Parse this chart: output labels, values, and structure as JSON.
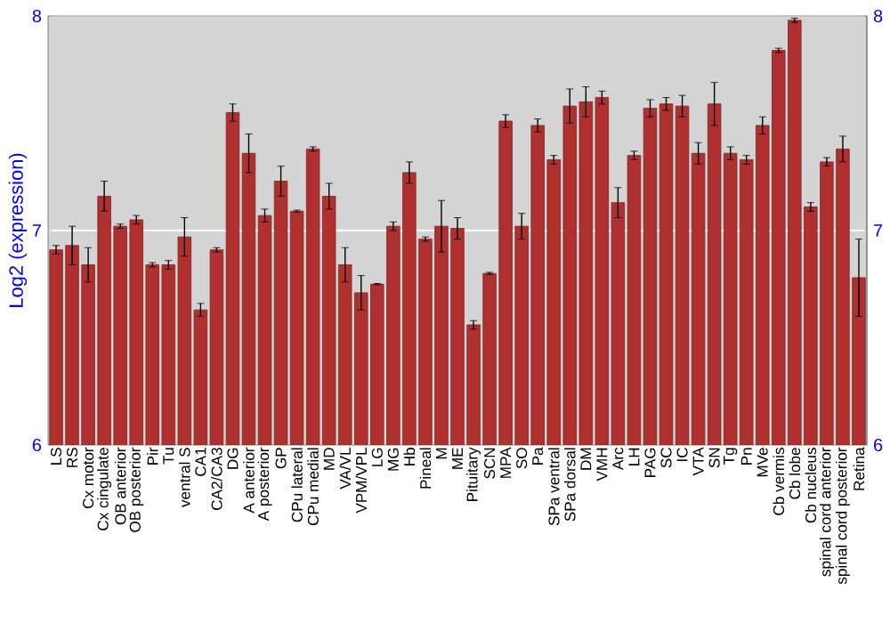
{
  "chart_data": {
    "type": "bar",
    "ylabel": "Log2 (expression)",
    "categories": [
      "LS",
      "RS",
      "Cx motor",
      "Cx cingulate",
      "OB anterior",
      "OB posterior",
      "Pir",
      "Tu",
      "ventral S",
      "CA1",
      "CA2/CA3",
      "DG",
      "A anterior",
      "A posterior",
      "GP",
      "CPu lateral",
      "CPu medial",
      "MD",
      "VA/VL",
      "VPM/VPL",
      "LG",
      "MG",
      "Hb",
      "Pineal",
      "M",
      "ME",
      "Pituitary",
      "SCN",
      "MPA",
      "SO",
      "Pa",
      "SPa ventral",
      "SPa dorsal",
      "DM",
      "VMH",
      "Arc",
      "LH",
      "PAG",
      "SC",
      "IC",
      "VTA",
      "SN",
      "Tg",
      "Pn",
      "MVe",
      "Cb vermis",
      "Cb lobe",
      "Cb nucleus",
      "spinal cord anterior",
      "spinal cord posterior",
      "Retina"
    ],
    "values": [
      6.91,
      6.93,
      6.84,
      7.16,
      7.02,
      7.05,
      6.84,
      6.84,
      6.97,
      6.63,
      6.91,
      7.55,
      7.36,
      7.07,
      7.23,
      7.09,
      7.38,
      7.16,
      6.84,
      6.71,
      6.75,
      7.02,
      7.27,
      6.96,
      7.02,
      7.01,
      6.56,
      6.8,
      7.51,
      7.02,
      7.49,
      7.33,
      7.58,
      7.6,
      7.62,
      7.13,
      7.35,
      7.57,
      7.59,
      7.58,
      7.36,
      7.59,
      7.36,
      7.33,
      7.49,
      7.84,
      7.98,
      7.11,
      7.32,
      7.38,
      6.78
    ],
    "errors": [
      0.02,
      0.09,
      0.08,
      0.07,
      0.01,
      0.02,
      0.01,
      0.02,
      0.09,
      0.03,
      0.01,
      0.04,
      0.09,
      0.03,
      0.07,
      0.005,
      0.01,
      0.06,
      0.08,
      0.08,
      0.003,
      0.02,
      0.05,
      0.01,
      0.12,
      0.05,
      0.02,
      0.005,
      0.03,
      0.06,
      0.03,
      0.02,
      0.08,
      0.07,
      0.03,
      0.07,
      0.02,
      0.04,
      0.03,
      0.05,
      0.05,
      0.1,
      0.03,
      0.02,
      0.04,
      0.01,
      0.01,
      0.02,
      0.02,
      0.06,
      0.18
    ],
    "color": "#b03030",
    "ylim": [
      6,
      8
    ],
    "yticks": [
      6,
      7,
      8
    ],
    "y2lim": [
      6,
      8
    ],
    "y2ticks": [
      6,
      7,
      8
    ],
    "grid": "y"
  }
}
